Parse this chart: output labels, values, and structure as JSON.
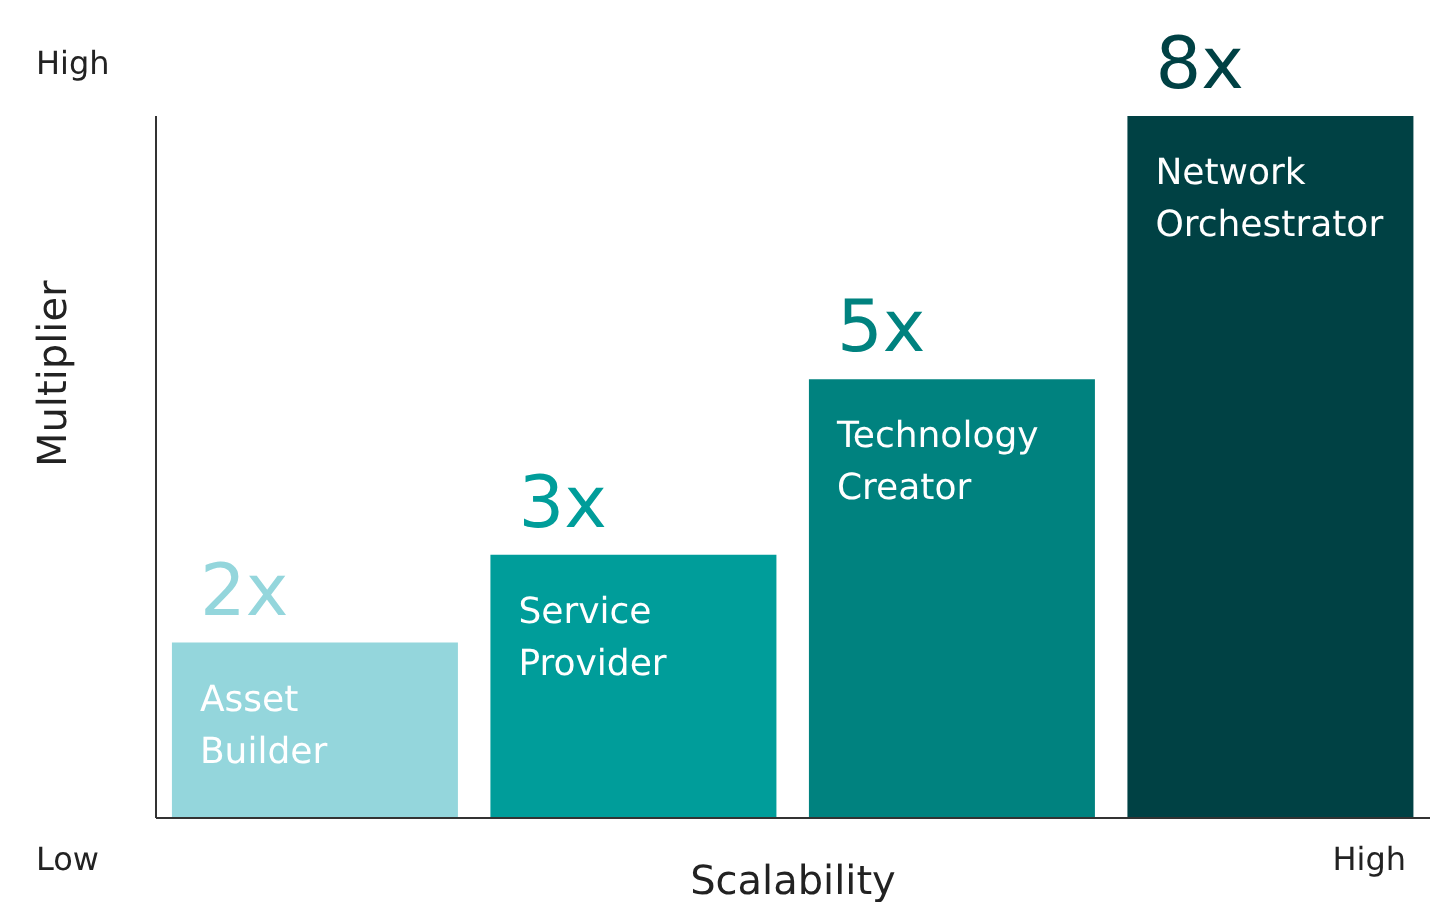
{
  "chart_data": {
    "type": "bar",
    "xlabel": "Scalability",
    "ylabel": "Multiplier",
    "categories": [
      "Asset Builder",
      "Service Provider",
      "Technology Creator",
      "Network Orchestrator"
    ],
    "values": [
      2,
      3,
      5,
      8
    ],
    "colors": [
      "#94d6dc",
      "#009d9a",
      "#00827f",
      "#004144"
    ],
    "value_labels": [
      "2x",
      "3x",
      "5x",
      "8x"
    ],
    "tick_labels": false,
    "annotations": [
      "High",
      "Low",
      "High"
    ]
  }
}
